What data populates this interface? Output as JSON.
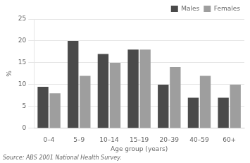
{
  "chart_data": {
    "type": "bar",
    "categories": [
      "0–4",
      "5–9",
      "10–14",
      "15–19",
      "20–39",
      "40–59",
      "60+"
    ],
    "series": [
      {
        "name": "Males",
        "color": "#4a4a4a",
        "values": [
          9.5,
          20,
          17,
          18,
          10,
          7,
          7
        ]
      },
      {
        "name": "Females",
        "color": "#9e9e9e",
        "values": [
          8,
          12,
          15,
          18,
          14,
          12,
          10
        ]
      }
    ],
    "xlabel": "Age group (years)",
    "ylabel": "%",
    "annotations": [
      "Source: ABS 2001 National Health Survey."
    ],
    "ylim": [
      0,
      25
    ],
    "yticks": [
      0,
      5,
      10,
      15,
      20,
      25
    ],
    "grid": true,
    "legend": "upper right"
  }
}
